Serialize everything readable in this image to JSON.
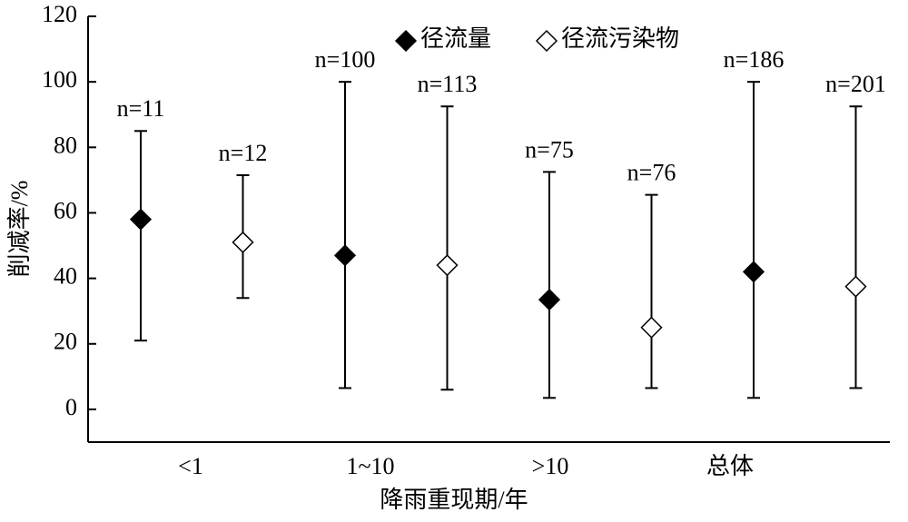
{
  "chart_data": {
    "type": "errorbar",
    "xlabel": "降雨重现期/年",
    "ylabel": "削减率/%",
    "categories": [
      "<1",
      "1~10",
      ">10",
      "总体"
    ],
    "ylim": [
      -10,
      120
    ],
    "yticks": [
      0,
      20,
      40,
      60,
      80,
      100,
      120
    ],
    "legend": "top",
    "series": [
      {
        "name": "径流量",
        "color": "#000000",
        "marker": "filled-diamond",
        "values": [
          58,
          47,
          33.5,
          42
        ],
        "min": [
          21,
          6.5,
          3.5,
          3.5
        ],
        "max": [
          85,
          100,
          72.5,
          100
        ],
        "labels": [
          "n=11",
          "n=100",
          "n=75",
          "n=186"
        ]
      },
      {
        "name": "径流污染物",
        "color": "#000000",
        "marker": "open-diamond",
        "values": [
          51,
          44,
          25,
          37.5
        ],
        "min": [
          34,
          6,
          6.5,
          6.5
        ],
        "max": [
          71.5,
          92.5,
          65.5,
          92.5
        ],
        "labels": [
          "n=12",
          "n=113",
          "n=76",
          "n=201"
        ]
      }
    ]
  }
}
